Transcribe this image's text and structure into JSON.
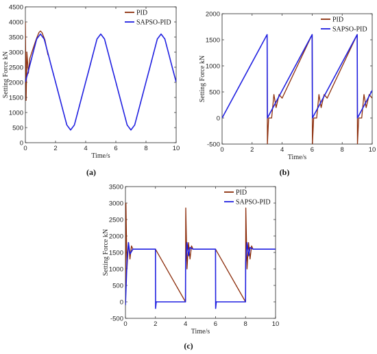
{
  "chart_data": [
    {
      "type": "line",
      "panel_label": "(a)",
      "xlabel": "Time/s",
      "ylabel": "Setting Force kN",
      "xlim": [
        0,
        10
      ],
      "ylim": [
        0,
        4500
      ],
      "xticks": [
        "0",
        "2",
        "4",
        "6",
        "8",
        "10"
      ],
      "yticks": [
        "0",
        "500",
        "1000",
        "1500",
        "2000",
        "2500",
        "3000",
        "3500",
        "4000",
        "4500"
      ],
      "legend": [
        "PID",
        "SAPSO-PID"
      ],
      "legend_position": "top-right",
      "series": [
        {
          "name": "PID",
          "color": "#8B2C0A",
          "x": [
            0,
            0.05,
            0.1,
            0.2,
            0.3,
            0.5,
            0.7,
            0.9,
            1.0,
            1.1,
            1.3,
            1.5
          ],
          "y": [
            4000,
            1400,
            3000,
            2300,
            2800,
            3100,
            3400,
            3650,
            3700,
            3650,
            3400,
            2900
          ]
        },
        {
          "name": "SAPSO-PID",
          "color": "#1F1FE0",
          "x": [
            0,
            0.25,
            0.5,
            0.75,
            1.0,
            1.25,
            1.5,
            1.75,
            2.0,
            2.25,
            2.5,
            2.75,
            3.0,
            3.25,
            3.5,
            3.75,
            4.0,
            4.25,
            4.5,
            4.75,
            5.0,
            5.25,
            5.5,
            5.75,
            6.0,
            6.25,
            6.5,
            6.75,
            7.0,
            7.25,
            7.5,
            7.75,
            8.0,
            8.25,
            8.5,
            8.75,
            9.0,
            9.25,
            9.5,
            9.75,
            10.0
          ],
          "y": [
            2010,
            2478,
            2960,
            3434,
            3600,
            3434,
            2960,
            2478,
            2010,
            1534,
            1060,
            586,
            420,
            586,
            1060,
            1534,
            2010,
            2478,
            2960,
            3434,
            3600,
            3434,
            2960,
            2478,
            2010,
            1534,
            1060,
            586,
            420,
            586,
            1060,
            1534,
            2010,
            2478,
            2960,
            3434,
            3600,
            3434,
            2960,
            2478,
            2010
          ]
        }
      ]
    },
    {
      "type": "line",
      "panel_label": "(b)",
      "xlabel": "Time/s",
      "ylabel": "Setting Force kN",
      "xlim": [
        0,
        10
      ],
      "ylim": [
        -500,
        2000
      ],
      "xticks": [
        "0",
        "2",
        "4",
        "6",
        "8",
        "10"
      ],
      "yticks": [
        "-500",
        "0",
        "500",
        "1000",
        "1500",
        "2000"
      ],
      "legend": [
        "PID",
        "SAPSO-PID"
      ],
      "legend_position": "top-right",
      "series": [
        {
          "name": "PID",
          "color": "#8B2C0A",
          "x": [
            3.0,
            3.02,
            3.1,
            3.3,
            3.45,
            3.6,
            3.8,
            4.0,
            6.0,
            6.02,
            6.1,
            6.3,
            6.45,
            6.6,
            6.8,
            7.0,
            9.0,
            9.02,
            9.1,
            9.3,
            9.45,
            9.6,
            9.8,
            10.0
          ],
          "y": [
            1600,
            -500,
            0,
            0,
            450,
            200,
            450,
            380,
            1600,
            -500,
            0,
            0,
            450,
            200,
            450,
            380,
            1600,
            -500,
            0,
            0,
            450,
            200,
            450,
            380
          ]
        },
        {
          "name": "SAPSO-PID",
          "color": "#1F1FE0",
          "x": [
            0,
            3.0,
            3.02,
            6.0,
            6.02,
            9.0,
            9.02,
            10.0
          ],
          "y": [
            0,
            1600,
            0,
            1600,
            0,
            1600,
            0,
            530
          ]
        }
      ]
    },
    {
      "type": "line",
      "panel_label": "(c)",
      "xlabel": "Time/s",
      "ylabel": "Setting Force kN",
      "xlim": [
        0,
        10
      ],
      "ylim": [
        -500,
        3500
      ],
      "xticks": [
        "0",
        "2",
        "4",
        "6",
        "8",
        "10"
      ],
      "yticks": [
        "-500",
        "0",
        "500",
        "1000",
        "1500",
        "2000",
        "2500",
        "3000",
        "3500"
      ],
      "legend": [
        "PID",
        "SAPSO-PID"
      ],
      "legend_position": "top-right",
      "series": [
        {
          "name": "PID",
          "color": "#8B2C0A",
          "x": [
            0,
            0.03,
            0.1,
            0.2,
            0.3,
            0.4,
            0.5,
            2.0,
            4.0,
            4.02,
            4.1,
            4.2,
            4.3,
            4.4,
            4.5,
            6.0,
            8.0,
            8.02,
            8.1,
            8.2,
            8.3,
            8.4,
            8.5,
            10.0
          ],
          "y": [
            0,
            3000,
            1000,
            1800,
            1300,
            1700,
            1600,
            1600,
            0,
            2850,
            1000,
            1800,
            1300,
            1700,
            1600,
            1600,
            0,
            2850,
            1000,
            1800,
            1300,
            1700,
            1600,
            1600
          ]
        },
        {
          "name": "SAPSO-PID",
          "color": "#1F1FE0",
          "x": [
            0,
            0.1,
            0.2,
            0.3,
            0.5,
            2.0,
            2.01,
            2.05,
            4.0,
            4.01,
            4.1,
            4.2,
            4.3,
            4.5,
            6.0,
            6.01,
            6.05,
            8.0,
            8.01,
            8.1,
            8.2,
            8.3,
            8.5,
            10.0
          ],
          "y": [
            -100,
            1200,
            1800,
            1450,
            1600,
            1600,
            -200,
            0,
            0,
            1200,
            1800,
            1400,
            1650,
            1600,
            1600,
            -200,
            0,
            0,
            1200,
            1800,
            1400,
            1650,
            1600,
            1600
          ]
        }
      ]
    }
  ]
}
